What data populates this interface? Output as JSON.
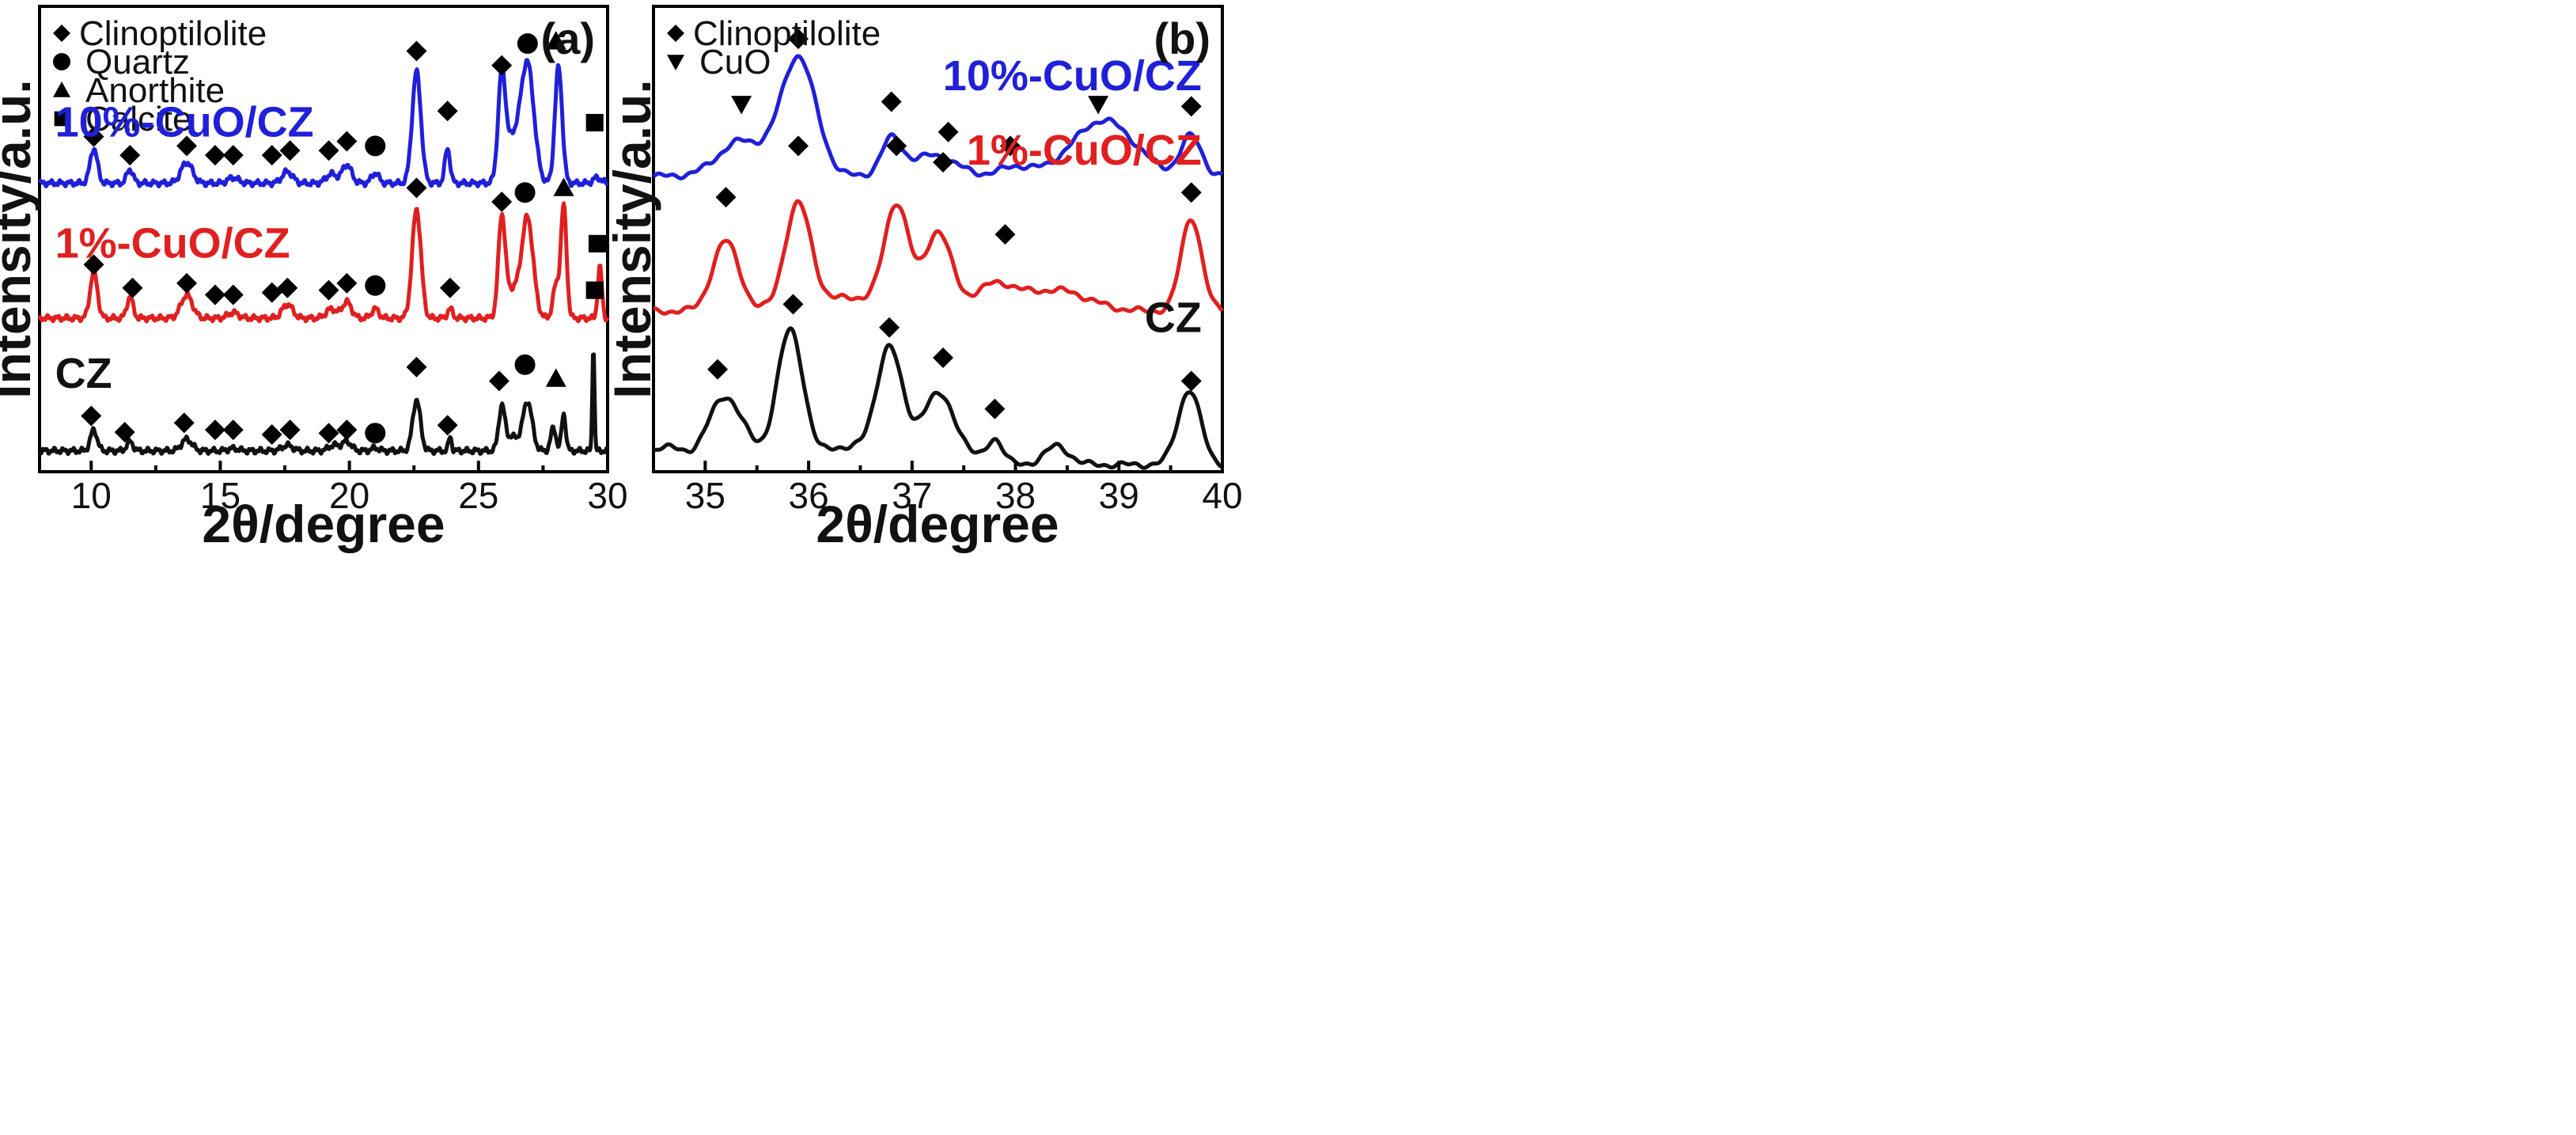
{
  "chart_data": [
    {
      "panel": "(a)",
      "type": "line",
      "title": "",
      "xlabel": "2θ/degree",
      "ylabel": "Intensity/a.u.",
      "xlim": [
        8,
        30
      ],
      "ylim": [
        0,
        1
      ],
      "xticks": [
        10,
        15,
        20,
        25,
        30
      ],
      "y_ticks_shown": false,
      "legend": [
        {
          "symbol": "diamond",
          "label": "Clinoptilolite"
        },
        {
          "symbol": "circle",
          "label": "Quartz"
        },
        {
          "symbol": "triangle-up",
          "label": "Anorthite"
        },
        {
          "symbol": "square",
          "label": "Calcite"
        }
      ],
      "series": [
        {
          "name": "10%-CuO/CZ",
          "color": "#2020d8",
          "baseline": 0.62,
          "peaks": [
            [
              10.1,
              0.075,
              0.14
            ],
            [
              11.5,
              0.03,
              0.12
            ],
            [
              13.7,
              0.045,
              0.22
            ],
            [
              15.5,
              0.012,
              0.2
            ],
            [
              17.6,
              0.025,
              0.2
            ],
            [
              19.3,
              0.02,
              0.2
            ],
            [
              19.9,
              0.04,
              0.18
            ],
            [
              21.0,
              0.022,
              0.14
            ],
            [
              22.6,
              0.24,
              0.17
            ],
            [
              23.8,
              0.075,
              0.1
            ],
            [
              25.9,
              0.21,
              0.14
            ],
            [
              26.9,
              0.25,
              0.25
            ],
            [
              26.3,
              0.09,
              0.3
            ],
            [
              28.1,
              0.25,
              0.14
            ],
            [
              29.6,
              0.012,
              0.15
            ]
          ],
          "markers": [
            [
              "diamond",
              10.1,
              0.72
            ],
            [
              "diamond",
              11.5,
              0.68
            ],
            [
              "diamond",
              13.7,
              0.7
            ],
            [
              "diamond",
              14.8,
              0.68
            ],
            [
              "diamond",
              15.5,
              0.68
            ],
            [
              "diamond",
              17.0,
              0.68
            ],
            [
              "diamond",
              17.7,
              0.69
            ],
            [
              "diamond",
              19.2,
              0.69
            ],
            [
              "diamond",
              19.9,
              0.71
            ],
            [
              "circle",
              21.0,
              0.7
            ],
            [
              "diamond",
              22.6,
              0.904
            ],
            [
              "diamond",
              23.8,
              0.775
            ],
            [
              "diamond",
              25.9,
              0.873
            ],
            [
              "circle",
              26.9,
              0.92
            ],
            [
              "triangle-up",
              28.0,
              0.925
            ],
            [
              "square",
              29.5,
              0.75
            ]
          ]
        },
        {
          "name": "1%-CuO/CZ",
          "color": "#e02020",
          "baseline": 0.33,
          "peaks": [
            [
              10.1,
              0.1,
              0.14
            ],
            [
              11.5,
              0.045,
              0.12
            ],
            [
              13.7,
              0.05,
              0.22
            ],
            [
              15.5,
              0.012,
              0.2
            ],
            [
              17.6,
              0.03,
              0.2
            ],
            [
              19.3,
              0.02,
              0.2
            ],
            [
              19.9,
              0.035,
              0.18
            ],
            [
              21.0,
              0.02,
              0.14
            ],
            [
              22.6,
              0.235,
              0.17
            ],
            [
              23.9,
              0.02,
              0.1
            ],
            [
              25.9,
              0.2,
              0.13
            ],
            [
              26.9,
              0.21,
              0.22
            ],
            [
              26.3,
              0.06,
              0.3
            ],
            [
              28.0,
              0.07,
              0.12
            ],
            [
              28.3,
              0.24,
              0.11
            ],
            [
              29.7,
              0.11,
              0.08
            ]
          ],
          "markers": [
            [
              "diamond",
              10.1,
              0.445
            ],
            [
              "diamond",
              11.6,
              0.395
            ],
            [
              "diamond",
              13.7,
              0.405
            ],
            [
              "diamond",
              14.8,
              0.38
            ],
            [
              "diamond",
              15.5,
              0.38
            ],
            [
              "diamond",
              17.0,
              0.385
            ],
            [
              "diamond",
              17.6,
              0.395
            ],
            [
              "diamond",
              19.2,
              0.39
            ],
            [
              "diamond",
              19.9,
              0.405
            ],
            [
              "circle",
              21.0,
              0.4
            ],
            [
              "diamond",
              22.6,
              0.61
            ],
            [
              "diamond",
              23.9,
              0.395
            ],
            [
              "diamond",
              25.9,
              0.58
            ],
            [
              "circle",
              26.8,
              0.6
            ],
            [
              "triangle-up",
              28.3,
              0.61
            ],
            [
              "square",
              29.6,
              0.49
            ]
          ]
        },
        {
          "name": "CZ",
          "color": "#111111",
          "baseline": 0.045,
          "peaks": [
            [
              10.1,
              0.045,
              0.13
            ],
            [
              11.5,
              0.02,
              0.12
            ],
            [
              13.7,
              0.025,
              0.2
            ],
            [
              15.5,
              0.005,
              0.2
            ],
            [
              17.6,
              0.012,
              0.2
            ],
            [
              19.4,
              0.012,
              0.2
            ],
            [
              19.9,
              0.02,
              0.17
            ],
            [
              21.0,
              0.006,
              0.14
            ],
            [
              22.6,
              0.11,
              0.15
            ],
            [
              23.9,
              0.03,
              0.06
            ],
            [
              25.9,
              0.09,
              0.12
            ],
            [
              26.9,
              0.105,
              0.18
            ],
            [
              26.3,
              0.03,
              0.25
            ],
            [
              27.9,
              0.05,
              0.1
            ],
            [
              28.3,
              0.08,
              0.08
            ],
            [
              29.45,
              0.23,
              0.04
            ]
          ],
          "markers": [
            [
              "diamond",
              10.0,
              0.12
            ],
            [
              "diamond",
              11.3,
              0.085
            ],
            [
              "diamond",
              13.6,
              0.105
            ],
            [
              "diamond",
              14.8,
              0.09
            ],
            [
              "diamond",
              15.5,
              0.09
            ],
            [
              "diamond",
              17.0,
              0.08
            ],
            [
              "diamond",
              17.7,
              0.09
            ],
            [
              "diamond",
              19.2,
              0.083
            ],
            [
              "diamond",
              19.9,
              0.09
            ],
            [
              "circle",
              21.0,
              0.083
            ],
            [
              "diamond",
              22.6,
              0.225
            ],
            [
              "diamond",
              23.8,
              0.1
            ],
            [
              "diamond",
              25.8,
              0.195
            ],
            [
              "circle",
              26.8,
              0.23
            ],
            [
              "triangle-up",
              28.0,
              0.2
            ],
            [
              "square",
              29.5,
              0.39
            ]
          ]
        }
      ],
      "series_labels": [
        {
          "text": "10%-CuO/CZ",
          "color": "#2020d8",
          "x": 8.6,
          "y": 0.72
        },
        {
          "text": "1%-CuO/CZ",
          "color": "#e02020",
          "x": 8.6,
          "y": 0.46
        },
        {
          "text": "CZ",
          "color": "#111111",
          "x": 8.6,
          "y": 0.18
        }
      ]
    },
    {
      "panel": "(b)",
      "type": "line",
      "title": "",
      "xlabel": "2θ/degree",
      "ylabel": "Intensity/a.u.",
      "xlim": [
        34.5,
        40
      ],
      "ylim": [
        0,
        1
      ],
      "xticks": [
        35,
        36,
        37,
        38,
        39,
        40
      ],
      "y_ticks_shown": false,
      "legend": [
        {
          "symbol": "diamond",
          "label": "Clinoptilolite"
        },
        {
          "symbol": "triangle-down",
          "label": "CuO"
        }
      ],
      "series": [
        {
          "name": "10%-CuO/CZ",
          "color": "#2020d8",
          "baseline": 0.635,
          "peaks": [
            [
              35.35,
              0.075,
              0.22
            ],
            [
              35.9,
              0.255,
              0.17
            ],
            [
              36.8,
              0.075,
              0.1
            ],
            [
              37.2,
              0.045,
              0.22
            ],
            [
              38.0,
              0.02,
              0.15
            ],
            [
              38.85,
              0.12,
              0.3
            ],
            [
              39.7,
              0.085,
              0.1
            ]
          ],
          "markers": [
            [
              "diamond",
              35.9,
              0.93
            ],
            [
              "triangle-down",
              35.35,
              0.79
            ],
            [
              "diamond",
              36.8,
              0.795
            ],
            [
              "diamond",
              37.35,
              0.73
            ],
            [
              "diamond",
              37.95,
              0.7
            ],
            [
              "triangle-down",
              38.8,
              0.79
            ],
            [
              "diamond",
              39.7,
              0.785
            ]
          ]
        },
        {
          "name": "1%-CuO/CZ",
          "color": "#e02020",
          "baseline": 0.345,
          "peaks": [
            [
              35.2,
              0.15,
              0.13
            ],
            [
              35.9,
              0.23,
              0.13
            ],
            [
              36.4,
              0.03,
              0.2
            ],
            [
              36.85,
              0.23,
              0.12
            ],
            [
              37.25,
              0.17,
              0.13
            ],
            [
              37.8,
              0.055,
              0.2
            ],
            [
              38.4,
              0.045,
              0.3
            ],
            [
              39.7,
              0.2,
              0.1
            ]
          ],
          "markers": [
            [
              "diamond",
              35.2,
              0.59
            ],
            [
              "diamond",
              35.9,
              0.7
            ],
            [
              "diamond",
              36.85,
              0.7
            ],
            [
              "diamond",
              37.3,
              0.665
            ],
            [
              "diamond",
              37.9,
              0.51
            ],
            [
              "diamond",
              39.7,
              0.6
            ]
          ]
        },
        {
          "name": "CZ",
          "color": "#111111",
          "baseline": 0.015,
          "peaks": [
            [
              34.6,
              0.04,
              0.15
            ],
            [
              35.2,
              0.145,
              0.18
            ],
            [
              35.82,
              0.285,
              0.13
            ],
            [
              36.4,
              0.04,
              0.25
            ],
            [
              36.78,
              0.24,
              0.12
            ],
            [
              37.25,
              0.15,
              0.18
            ],
            [
              37.8,
              0.055,
              0.08
            ],
            [
              38.4,
              0.04,
              0.12
            ],
            [
              39.68,
              0.16,
              0.11
            ]
          ],
          "markers": [
            [
              "diamond",
              35.12,
              0.22
            ],
            [
              "diamond",
              35.85,
              0.36
            ],
            [
              "diamond",
              36.78,
              0.31
            ],
            [
              "diamond",
              37.3,
              0.245
            ],
            [
              "diamond",
              37.8,
              0.135
            ],
            [
              "diamond",
              39.7,
              0.195
            ]
          ]
        }
      ],
      "series_labels": [
        {
          "text": "10%-CuO/CZ",
          "color": "#2020d8",
          "x": 39.8,
          "y": 0.82
        },
        {
          "text": "1%-CuO/CZ",
          "color": "#e02020",
          "x": 39.8,
          "y": 0.66
        },
        {
          "text": "CZ",
          "color": "#111111",
          "x": 39.8,
          "y": 0.3
        }
      ]
    }
  ]
}
